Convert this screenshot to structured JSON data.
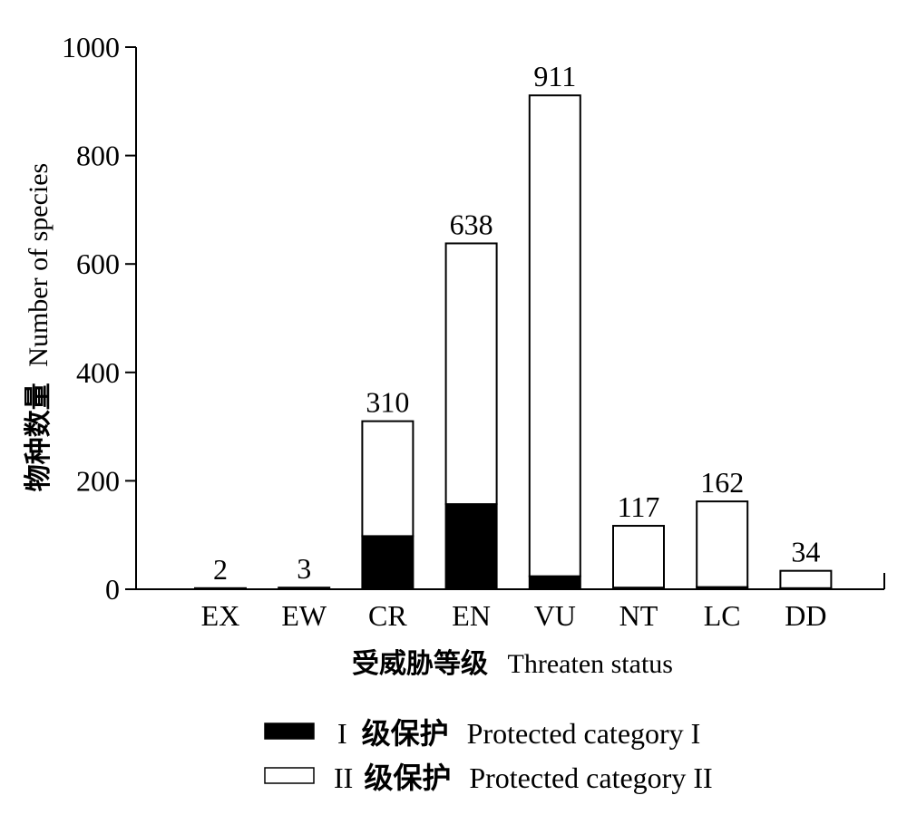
{
  "chart_data": {
    "type": "bar",
    "stacked": true,
    "categories": [
      "EX",
      "EW",
      "CR",
      "EN",
      "VU",
      "NT",
      "LC",
      "DD"
    ],
    "series": [
      {
        "name": "I 级保护 Protected category I",
        "values": [
          0,
          0,
          98,
          157,
          24,
          3,
          4,
          2
        ],
        "color": "#000000"
      },
      {
        "name": "II 级保护 Protected category II",
        "values": [
          2,
          3,
          212,
          481,
          887,
          114,
          158,
          32
        ],
        "color": "#ffffff"
      }
    ],
    "totals": [
      "2",
      "3",
      "310",
      "638",
      "911",
      "117",
      "162",
      "34"
    ],
    "ylim": [
      0,
      1000
    ],
    "yticks": [
      "0",
      "200",
      "400",
      "600",
      "800",
      "1000"
    ],
    "xlabel_cn": "受威胁等级",
    "xlabel_en": "Threaten status",
    "ylabel_cn": "物种数量",
    "ylabel_en": "Number of species",
    "grid": false,
    "legend_position": "bottom-center",
    "legend": [
      {
        "marker": "I",
        "cn": "级保护",
        "en": "Protected category I"
      },
      {
        "marker": "II",
        "cn": "级保护",
        "en": "Protected category II"
      }
    ]
  }
}
